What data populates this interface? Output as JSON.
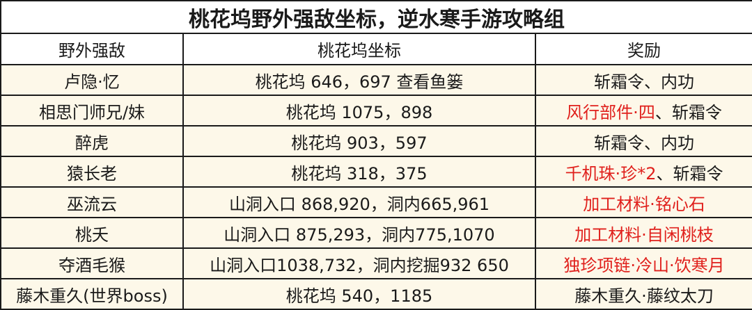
{
  "title": "桃花坞野外强敌坐标，逆水寒手游攻略组",
  "headers": [
    "野外强敌",
    "桃花坞坐标",
    "奖励"
  ],
  "colors": {
    "highlight_reward": "#e0201c",
    "row_background": "#fdf8e9"
  },
  "rows": [
    {
      "enemy": "卢隐·忆",
      "coords": "桃花坞 646，697 查看鱼篓",
      "reward": "斩霜令、内功",
      "highlight": false
    },
    {
      "enemy": "相思门师兄/妹",
      "coords": "桃花坞 1075，898",
      "reward": "风行部件·四、斩霜令",
      "highlight": "partial",
      "reward_red": "风行部件·四",
      "reward_rest": "、斩霜令"
    },
    {
      "enemy": "醉虎",
      "coords": "桃花坞 903，597",
      "reward": "斩霜令、内功",
      "highlight": false
    },
    {
      "enemy": "猿长老",
      "coords": "桃花坞 318，375",
      "reward": "千机珠·珍*2、斩霜令",
      "highlight": "partial",
      "reward_red": "千机珠·珍*2",
      "reward_rest": "、斩霜令"
    },
    {
      "enemy": "巫流云",
      "coords": "山洞入口 868,920，洞内665,961",
      "reward": "加工材料·铭心石",
      "highlight": true
    },
    {
      "enemy": "桃夭",
      "coords": "山洞入口 875,293，洞内775,1070",
      "reward": "加工材料·自闲桃枝",
      "highlight": true
    },
    {
      "enemy": "夺酒毛猴",
      "coords": "山洞入口1038,732，洞内挖掘932 650",
      "reward": "独珍项链·冷山·饮寒月",
      "highlight": true
    },
    {
      "enemy": "藤木重久(世界boss)",
      "coords": "桃花坞 540，1185",
      "reward": "藤木重久·藤纹太刀",
      "highlight": false
    }
  ]
}
